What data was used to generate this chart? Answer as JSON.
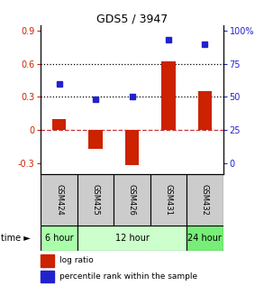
{
  "title": "GDS5 / 3947",
  "samples": [
    "GSM424",
    "GSM425",
    "GSM426",
    "GSM431",
    "GSM432"
  ],
  "log_ratio": [
    0.1,
    -0.17,
    -0.32,
    0.62,
    0.35
  ],
  "percentile_rank": [
    0.42,
    0.28,
    0.3,
    0.82,
    0.78
  ],
  "bar_color": "#cc2200",
  "dot_color": "#2222cc",
  "ylim_left": [
    -0.4,
    0.95
  ],
  "yticks_left": [
    -0.3,
    0.0,
    0.3,
    0.6,
    0.9
  ],
  "ytick_labels_left": [
    "-0.3",
    "0",
    "0.3",
    "0.6",
    "0.9"
  ],
  "ytick_labels_right": [
    "0",
    "25",
    "50",
    "75",
    "100%"
  ],
  "time_groups": [
    {
      "label": "6 hour",
      "start": 0,
      "end": 1,
      "color": "#aaffaa"
    },
    {
      "label": "12 hour",
      "start": 1,
      "end": 4,
      "color": "#ccffcc"
    },
    {
      "label": "24 hour",
      "start": 4,
      "end": 5,
      "color": "#77ee77"
    }
  ],
  "time_label": "time ►",
  "legend_log_ratio": "log ratio",
  "legend_pct": "percentile rank within the sample",
  "zero_line_color": "#cc3333",
  "dotted_line_color": "#000000",
  "label_color_left": "#cc2200",
  "label_color_right": "#2222cc",
  "sample_cell_color": "#cccccc"
}
